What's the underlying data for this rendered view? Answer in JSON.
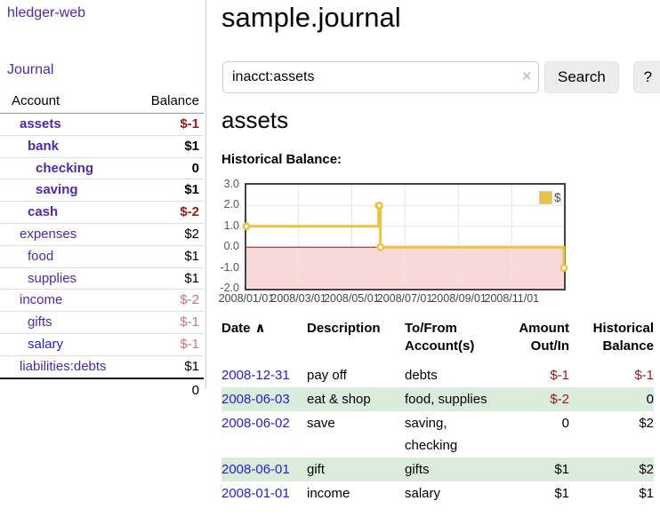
{
  "sidebar": {
    "brand": "hledger-web",
    "nav": {
      "journal": "Journal"
    },
    "accounts_table": {
      "headers": {
        "account": "Account",
        "balance": "Balance"
      },
      "rows": [
        {
          "account": "assets",
          "cls": "d0 b",
          "balance": "$-1",
          "bcls": "b neg"
        },
        {
          "account": "bank",
          "cls": "d1 b",
          "balance": "$1",
          "bcls": "b"
        },
        {
          "account": "checking",
          "cls": "d2 b",
          "balance": "0",
          "bcls": "b"
        },
        {
          "account": "saving",
          "cls": "d2 b",
          "balance": "$1",
          "bcls": "b"
        },
        {
          "account": "cash",
          "cls": "d1 b",
          "balance": "$-2",
          "bcls": "b neg"
        },
        {
          "account": "expenses",
          "cls": "d0",
          "balance": "$2",
          "bcls": ""
        },
        {
          "account": "food",
          "cls": "d1",
          "balance": "$1",
          "bcls": ""
        },
        {
          "account": "supplies",
          "cls": "d1",
          "balance": "$1",
          "bcls": ""
        },
        {
          "account": "income",
          "cls": "d0",
          "balance": "$-2",
          "bcls": "negl"
        },
        {
          "account": "gifts",
          "cls": "d1",
          "balance": "$-1",
          "bcls": "negl"
        },
        {
          "account": "salary",
          "cls": "d1 blue",
          "balance": "$-1",
          "bcls": "negl"
        },
        {
          "account": "liabilities:debts",
          "cls": "d0",
          "balance": "$1",
          "bcls": ""
        }
      ],
      "total": "0"
    }
  },
  "main": {
    "title": "sample.journal",
    "search": {
      "value": "inacct:assets",
      "clear_icon": "×",
      "button_label": "Search",
      "help_label": "?"
    },
    "account_heading": "assets",
    "chart_label": "Historical Balance:"
  },
  "chart_data": {
    "type": "line",
    "step": true,
    "title": "Historical Balance",
    "series": [
      {
        "name": "$",
        "points": [
          [
            "2008-01-01",
            1
          ],
          [
            "2008-06-01",
            2
          ],
          [
            "2008-06-02",
            2
          ],
          [
            "2008-06-03",
            0
          ],
          [
            "2008-12-31",
            -1
          ]
        ]
      }
    ],
    "x_range": [
      "2008-01-01",
      "2008-12-31"
    ],
    "y_range": [
      -2,
      3
    ],
    "x_ticks": [
      "2008/01/01",
      "2008/03/01",
      "2008/05/01",
      "2008/07/01",
      "2008/09/01",
      "2008/11/01"
    ],
    "y_ticks": [
      3,
      2,
      1,
      0,
      -1,
      -2
    ],
    "legend": {
      "label": "$",
      "position": "top-right"
    },
    "grid": true,
    "colors": {
      "line": "#edc240",
      "negative_fill": "#f9d8d8",
      "zero_line": "#8b1a1a",
      "grid": "#e6e6e6",
      "border": "#444444"
    }
  },
  "register_table": {
    "sort_indicator": "∧",
    "headers": {
      "date": "Date",
      "description": "Description",
      "accounts": "To/From Account(s)",
      "amount": "Amount Out/In",
      "balance": "Historical Balance"
    },
    "rows": [
      {
        "date": "2008-12-31",
        "description": "pay off",
        "accounts": "debts",
        "amount": "$-1",
        "acls": "neg",
        "balance": "$-1",
        "bcls": "neg"
      },
      {
        "date": "2008-06-03",
        "description": "eat & shop",
        "accounts": "food, supplies",
        "amount": "$-2",
        "acls": "neg",
        "balance": "0",
        "bcls": ""
      },
      {
        "date": "2008-06-02",
        "description": "save",
        "accounts": "saving, checking",
        "amount": "0",
        "acls": "",
        "balance": "$2",
        "bcls": ""
      },
      {
        "date": "2008-06-01",
        "description": "gift",
        "accounts": "gifts",
        "amount": "$1",
        "acls": "",
        "balance": "$2",
        "bcls": ""
      },
      {
        "date": "2008-01-01",
        "description": "income",
        "accounts": "salary",
        "amount": "$1",
        "acls": "",
        "balance": "$1",
        "bcls": ""
      }
    ]
  }
}
